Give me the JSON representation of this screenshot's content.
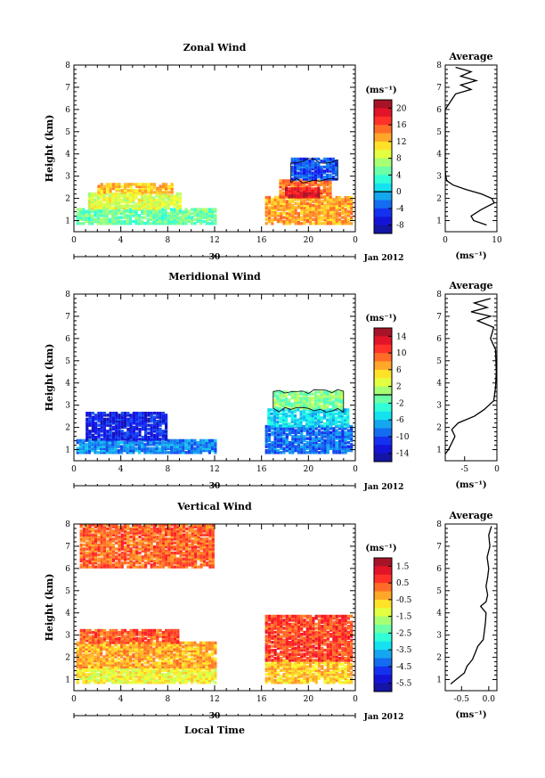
{
  "chart_data": [
    {
      "type": "heatmap",
      "title": "Zonal Wind",
      "ylabel": "Height (km)",
      "y_ticks": [
        "1",
        "2",
        "3",
        "4",
        "5",
        "6",
        "7",
        "8"
      ],
      "x_ticks": [
        "0",
        "4",
        "8",
        "12",
        "16",
        "20",
        "0"
      ],
      "date_day": "30",
      "date_month": "Jan 2012",
      "xlim": [
        0,
        24
      ],
      "ylim": [
        0.5,
        8
      ],
      "colorbar": {
        "unit": "(ms⁻¹)",
        "ticks": [
          "20",
          "16",
          "12",
          "8",
          "4",
          "0",
          "-4",
          "-8"
        ],
        "range": [
          -10,
          22
        ],
        "contour_level": 0
      },
      "blocks": [
        {
          "t": [
            0.2,
            12.0
          ],
          "h": [
            0.8,
            1.5
          ],
          "value": 5
        },
        {
          "t": [
            1.2,
            9.0
          ],
          "h": [
            1.5,
            2.2
          ],
          "value": 9
        },
        {
          "t": [
            2.0,
            8.5
          ],
          "h": [
            2.2,
            2.6
          ],
          "value": 12
        },
        {
          "t": [
            16.3,
            23.8
          ],
          "h": [
            0.8,
            2.0
          ],
          "value": 13
        },
        {
          "t": [
            17.5,
            22.0
          ],
          "h": [
            2.0,
            2.8
          ],
          "value": 15
        },
        {
          "t": [
            18.0,
            21.0
          ],
          "h": [
            2.0,
            2.4
          ],
          "value": 19
        },
        {
          "t": [
            18.5,
            22.5
          ],
          "h": [
            2.8,
            3.7
          ],
          "value": -4
        }
      ],
      "average": {
        "title": "Average",
        "xlabel": "(ms⁻¹)",
        "x_ticks": [
          "0",
          "10"
        ],
        "xlim": [
          0,
          10
        ],
        "height": [
          0.8,
          1.0,
          1.2,
          1.5,
          1.8,
          2.0,
          2.2,
          2.4,
          2.6,
          2.8,
          3.0,
          3.3,
          3.7,
          4.0,
          5.0,
          6.0,
          6.7,
          6.9,
          7.1,
          7.3,
          7.5,
          7.7,
          7.9
        ],
        "wind": [
          8,
          5.5,
          5,
          7,
          9.5,
          9,
          7,
          4,
          1.5,
          0.3,
          0.1,
          0,
          0,
          0,
          0,
          0,
          2,
          5,
          3,
          6,
          3,
          5,
          2
        ]
      }
    },
    {
      "type": "heatmap",
      "title": "Meridional Wind",
      "ylabel": "Height (km)",
      "y_ticks": [
        "1",
        "2",
        "3",
        "4",
        "5",
        "6",
        "7",
        "8"
      ],
      "x_ticks": [
        "0",
        "4",
        "8",
        "12",
        "16",
        "20",
        "0"
      ],
      "date_day": "30",
      "date_month": "Jan 2012",
      "xlim": [
        0,
        24
      ],
      "ylim": [
        0.5,
        8
      ],
      "colorbar": {
        "unit": "(ms⁻¹)",
        "ticks": [
          "14",
          "10",
          "6",
          "2",
          "-2",
          "-6",
          "-10",
          "-14"
        ],
        "range": [
          -16,
          16
        ],
        "contour_level": 0
      },
      "blocks": [
        {
          "t": [
            0.2,
            12.0
          ],
          "h": [
            0.8,
            1.4
          ],
          "value": -8
        },
        {
          "t": [
            1.0,
            8.0
          ],
          "h": [
            1.4,
            2.6
          ],
          "value": -12
        },
        {
          "t": [
            16.3,
            23.8
          ],
          "h": [
            0.8,
            2.0
          ],
          "value": -9
        },
        {
          "t": [
            16.5,
            23.5
          ],
          "h": [
            2.0,
            2.8
          ],
          "value": -5
        },
        {
          "t": [
            17.0,
            23.0
          ],
          "h": [
            2.8,
            3.6
          ],
          "value": 0
        }
      ],
      "average": {
        "title": "Average",
        "xlabel": "(ms⁻¹)",
        "x_ticks": [
          "-5",
          "0"
        ],
        "xlim": [
          -8,
          0
        ],
        "height": [
          0.8,
          1.0,
          1.3,
          1.6,
          1.9,
          2.2,
          2.5,
          2.8,
          3.2,
          3.8,
          4.5,
          5.5,
          6.0,
          6.5,
          6.8,
          7.0,
          7.2,
          7.4,
          7.6,
          7.8
        ],
        "wind": [
          -8,
          -7.5,
          -7,
          -6.5,
          -7,
          -6,
          -3.5,
          -2,
          -0.5,
          -0.2,
          -0.1,
          -0.2,
          -1,
          -0.5,
          -3,
          -1,
          -4,
          -1.5,
          -3.5,
          -1
        ]
      }
    },
    {
      "type": "heatmap",
      "title": "Vertical Wind",
      "xlabel": "Local Time",
      "ylabel": "Height (km)",
      "y_ticks": [
        "1",
        "2",
        "3",
        "4",
        "5",
        "6",
        "7",
        "8"
      ],
      "x_ticks": [
        "0",
        "4",
        "8",
        "12",
        "16",
        "20",
        "0"
      ],
      "date_day": "30",
      "date_month": "Jan 2012",
      "xlim": [
        0,
        24
      ],
      "ylim": [
        0.5,
        8
      ],
      "colorbar": {
        "unit": "(ms⁻¹)",
        "ticks": [
          "1.5",
          "0.5",
          "-0.5",
          "-1.5",
          "-2.5",
          "-3.5",
          "-4.5",
          "-5.5"
        ],
        "range": [
          -6,
          2
        ],
        "contour_level": null
      },
      "blocks": [
        {
          "t": [
            0.2,
            12.0
          ],
          "h": [
            0.8,
            1.5
          ],
          "value": -1.0
        },
        {
          "t": [
            0.2,
            12.0
          ],
          "h": [
            1.5,
            2.6
          ],
          "value": -0.3
        },
        {
          "t": [
            0.5,
            9.0
          ],
          "h": [
            2.6,
            3.2
          ],
          "value": 0.4
        },
        {
          "t": [
            16.3,
            23.8
          ],
          "h": [
            0.8,
            1.8
          ],
          "value": -0.6
        },
        {
          "t": [
            16.3,
            23.8
          ],
          "h": [
            1.8,
            3.8
          ],
          "value": 0.6
        },
        {
          "t": [
            0.5,
            12.0
          ],
          "h": [
            6.0,
            7.9
          ],
          "value": 0.3
        }
      ],
      "average": {
        "title": "Average",
        "xlabel": "(ms⁻¹)",
        "x_ticks": [
          "-0.5",
          "0.0"
        ],
        "xlim": [
          -0.8,
          0.15
        ],
        "height": [
          0.8,
          1.0,
          1.3,
          1.6,
          1.9,
          2.2,
          2.5,
          2.8,
          3.2,
          3.6,
          4.0,
          4.3,
          4.5,
          4.8,
          5.2,
          5.6,
          6.0,
          6.5,
          7.0,
          7.5,
          7.9
        ],
        "wind": [
          -0.7,
          -0.6,
          -0.45,
          -0.4,
          -0.3,
          -0.25,
          -0.2,
          -0.1,
          -0.08,
          -0.06,
          -0.05,
          -0.15,
          -0.05,
          -0.02,
          -0.05,
          -0.02,
          0.0,
          -0.03,
          0.02,
          0.0,
          0.05
        ]
      }
    }
  ]
}
